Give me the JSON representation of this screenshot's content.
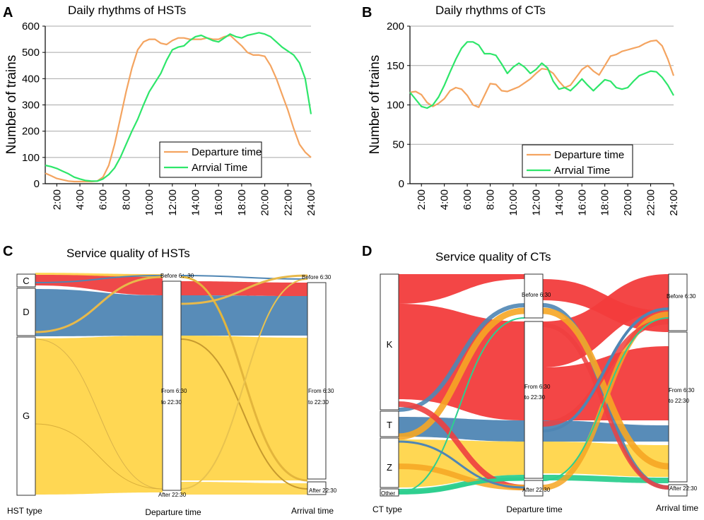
{
  "chart_data": [
    {
      "panel": "A",
      "type": "line",
      "title": "Daily rhythms of HSTs",
      "xlabel": "",
      "ylabel": "Number of trains",
      "xlim": [
        1,
        24
      ],
      "ylim": [
        0,
        600
      ],
      "yticks": [
        "0",
        "100",
        "200",
        "300",
        "400",
        "500",
        "600"
      ],
      "xtick_labels": [
        "2:00",
        "4:00",
        "6:00",
        "8:00",
        "10:00",
        "12:00",
        "14:00",
        "16:00",
        "18:00",
        "20:00",
        "22:00",
        "24:00"
      ],
      "xtick_values": [
        2,
        4,
        6,
        8,
        10,
        12,
        14,
        16,
        18,
        20,
        22,
        24
      ],
      "legend": "bottom-right",
      "series": [
        {
          "name": "Departure time",
          "color": "#f4a460",
          "x": [
            1,
            1.5,
            2,
            2.5,
            3,
            3.5,
            4,
            4.5,
            5,
            5.5,
            6,
            6.5,
            7,
            7.5,
            8,
            8.5,
            9,
            9.5,
            10,
            10.5,
            11,
            11.5,
            12,
            12.5,
            13,
            13.5,
            14,
            14.5,
            15,
            15.5,
            16,
            16.5,
            17,
            17.5,
            18,
            18.5,
            19,
            19.5,
            20,
            20.5,
            21,
            21.5,
            22,
            22.5,
            23,
            23.5,
            24
          ],
          "y": [
            40,
            30,
            20,
            15,
            10,
            8,
            8,
            8,
            8,
            10,
            25,
            70,
            150,
            250,
            350,
            440,
            510,
            540,
            550,
            550,
            535,
            530,
            545,
            555,
            555,
            550,
            550,
            550,
            555,
            550,
            550,
            560,
            565,
            545,
            525,
            500,
            490,
            490,
            485,
            450,
            400,
            340,
            280,
            210,
            150,
            120,
            100
          ]
        },
        {
          "name": "Arrvial Time",
          "color": "#2ee66a",
          "x": [
            1,
            1.5,
            2,
            2.5,
            3,
            3.5,
            4,
            4.5,
            5,
            5.5,
            6,
            6.5,
            7,
            7.5,
            8,
            8.5,
            9,
            9.5,
            10,
            10.5,
            11,
            11.5,
            12,
            12.5,
            13,
            13.5,
            14,
            14.5,
            15,
            15.5,
            16,
            16.5,
            17,
            17.5,
            18,
            18.5,
            19,
            19.5,
            20,
            20.5,
            21,
            21.5,
            22,
            22.5,
            23,
            23.5,
            24
          ],
          "y": [
            70,
            65,
            58,
            48,
            38,
            25,
            18,
            12,
            10,
            10,
            18,
            35,
            60,
            100,
            150,
            200,
            245,
            300,
            350,
            385,
            420,
            470,
            510,
            520,
            525,
            545,
            560,
            565,
            555,
            545,
            540,
            555,
            570,
            560,
            555,
            565,
            570,
            575,
            570,
            560,
            540,
            520,
            505,
            490,
            460,
            400,
            265
          ]
        }
      ]
    },
    {
      "panel": "B",
      "type": "line",
      "title": "Daily rhythms of CTs",
      "xlabel": "",
      "ylabel": "Number of trains",
      "xlim": [
        1,
        24
      ],
      "ylim": [
        0,
        200
      ],
      "yticks": [
        "0",
        "50",
        "100",
        "150",
        "200"
      ],
      "xtick_labels": [
        "2:00",
        "4:00",
        "6:00",
        "8:00",
        "10:00",
        "12:00",
        "14:00",
        "16:00",
        "18:00",
        "20:00",
        "22:00",
        "24:00"
      ],
      "xtick_values": [
        2,
        4,
        6,
        8,
        10,
        12,
        14,
        16,
        18,
        20,
        22,
        24
      ],
      "legend": "bottom-right",
      "series": [
        {
          "name": "Departure time",
          "color": "#f4a460",
          "x": [
            1,
            1.5,
            2,
            2.5,
            3,
            3.5,
            4,
            4.5,
            5,
            5.5,
            6,
            6.5,
            7,
            7.5,
            8,
            8.5,
            9,
            9.5,
            10,
            10.5,
            11,
            11.5,
            12,
            12.5,
            13,
            13.5,
            14,
            14.5,
            15,
            15.5,
            16,
            16.5,
            17,
            17.5,
            18,
            18.5,
            19,
            19.5,
            20,
            20.5,
            21,
            21.5,
            22,
            22.5,
            23,
            23.5,
            24
          ],
          "y": [
            116,
            117,
            113,
            103,
            98,
            102,
            108,
            118,
            122,
            120,
            112,
            100,
            97,
            112,
            127,
            126,
            118,
            117,
            120,
            123,
            128,
            133,
            140,
            146,
            145,
            140,
            130,
            122,
            125,
            135,
            145,
            150,
            143,
            138,
            150,
            162,
            164,
            168,
            170,
            172,
            174,
            178,
            181,
            182,
            175,
            158,
            137
          ]
        },
        {
          "name": "Arrvial Time",
          "color": "#2ee66a",
          "x": [
            1,
            1.5,
            2,
            2.5,
            3,
            3.5,
            4,
            4.5,
            5,
            5.5,
            6,
            6.5,
            7,
            7.5,
            8,
            8.5,
            9,
            9.5,
            10,
            10.5,
            11,
            11.5,
            12,
            12.5,
            13,
            13.5,
            14,
            14.5,
            15,
            15.5,
            16,
            16.5,
            17,
            17.5,
            18,
            18.5,
            19,
            19.5,
            20,
            20.5,
            21,
            21.5,
            22,
            22.5,
            23,
            23.5,
            24
          ],
          "y": [
            116,
            107,
            98,
            96,
            100,
            110,
            125,
            142,
            158,
            172,
            180,
            180,
            176,
            165,
            165,
            163,
            152,
            140,
            148,
            153,
            148,
            140,
            145,
            153,
            147,
            130,
            120,
            122,
            118,
            125,
            133,
            125,
            118,
            125,
            132,
            130,
            122,
            120,
            122,
            130,
            137,
            140,
            143,
            142,
            135,
            125,
            112
          ]
        }
      ]
    },
    {
      "panel": "C",
      "type": "sankey",
      "title": "Service quality of HSTs",
      "axis_labels": [
        "HST type",
        "Departure time",
        "Arrival time"
      ],
      "columns": [
        {
          "name": "HST type",
          "nodes": [
            {
              "id": "C",
              "label": "C",
              "value": 6
            },
            {
              "id": "D",
              "label": "D",
              "value": 23
            },
            {
              "id": "G",
              "label": "G",
              "value": 71
            }
          ]
        },
        {
          "name": "Departure time",
          "nodes": [
            {
              "id": "dep_before",
              "label": "Before 6：30",
              "value": 3
            },
            {
              "id": "dep_mid",
              "label_line1": "From 6:30",
              "label_line2": "to 22:30",
              "value": 95
            },
            {
              "id": "dep_after",
              "label": "After 22:30",
              "value": 2
            }
          ]
        },
        {
          "name": "Arrival time",
          "nodes": [
            {
              "id": "arr_before",
              "label": "Before 6:30",
              "value": 3
            },
            {
              "id": "arr_mid",
              "label_line1": "From 6:30",
              "label_line2": "to 22:30",
              "value": 91
            },
            {
              "id": "arr_after",
              "label": "After 22:30",
              "value": 6
            }
          ]
        }
      ],
      "colors": {
        "C": "#ee3f3f",
        "D": "#4f86b4",
        "G": "#ffd54a"
      }
    },
    {
      "panel": "D",
      "type": "sankey",
      "title": "Service quality of CTs",
      "axis_labels": [
        "CT type",
        "Departure time",
        "Arrival time"
      ],
      "columns": [
        {
          "name": "CT type",
          "nodes": [
            {
              "id": "K",
              "label": "K",
              "value": 62
            },
            {
              "id": "T",
              "label": "T",
              "value": 12
            },
            {
              "id": "Z",
              "label": "Z",
              "value": 22
            },
            {
              "id": "Other",
              "label": "Other",
              "value": 4
            }
          ]
        },
        {
          "name": "Departure time",
          "nodes": [
            {
              "id": "dep_before",
              "label": "Before 6:30",
              "value": 16
            },
            {
              "id": "dep_mid",
              "label_line1": "From 6:30",
              "label_line2": "to 22:30",
              "value": 76
            },
            {
              "id": "dep_after",
              "label": "After 22:30",
              "value": 8
            }
          ]
        },
        {
          "name": "Arrival time",
          "nodes": [
            {
              "id": "arr_before",
              "label": "Before 6:30",
              "value": 27
            },
            {
              "id": "arr_mid",
              "label_line1": "From 6:30",
              "label_line2": "to 22:30",
              "value": 68
            },
            {
              "id": "arr_after",
              "label": "After 22:30",
              "value": 5
            }
          ]
        }
      ],
      "colors": {
        "K": "#f23c3c",
        "T": "#4f86b4",
        "Z": "#ffd54a",
        "Other": "#2ecf8f"
      }
    }
  ]
}
